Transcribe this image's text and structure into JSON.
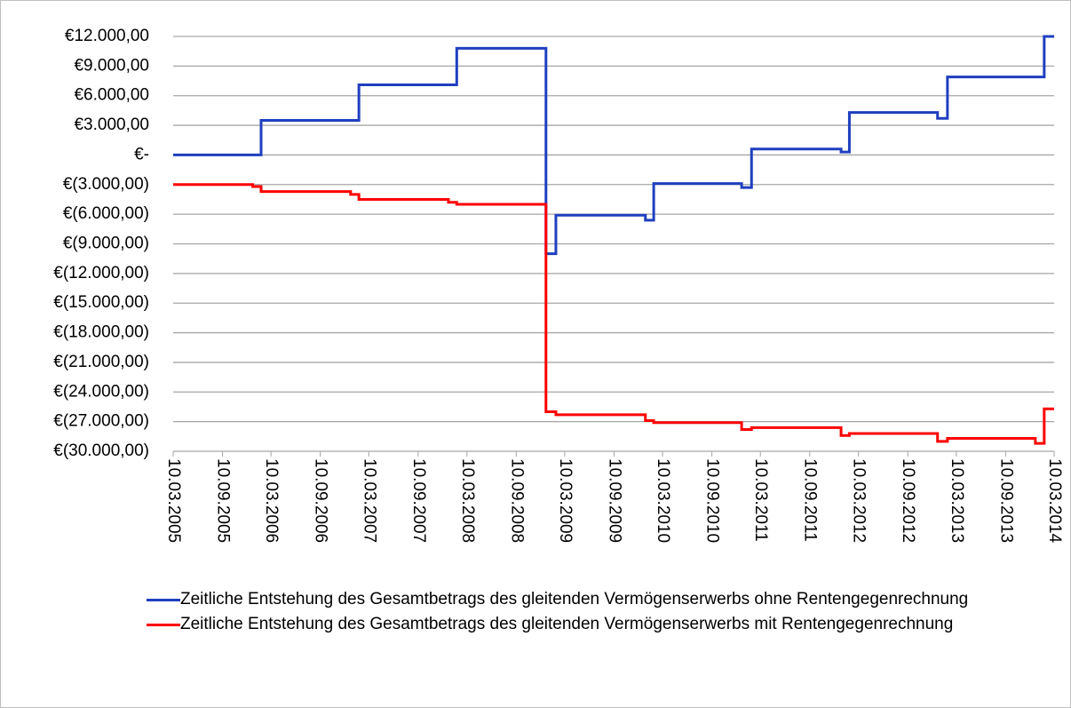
{
  "chart_data": {
    "type": "line",
    "step": "post",
    "xlim": [
      "10.03.2005",
      "10.03.2014"
    ],
    "xticks": [
      "10.03.2005",
      "10.09.2005",
      "10.03.2006",
      "10.09.2006",
      "10.03.2007",
      "10.09.2007",
      "10.03.2008",
      "10.09.2008",
      "10.03.2009",
      "10.09.2009",
      "10.03.2010",
      "10.09.2010",
      "10.03.2011",
      "10.09.2011",
      "10.03.2012",
      "10.09.2012",
      "10.03.2013",
      "10.09.2013",
      "10.03.2014"
    ],
    "ylim": [
      -30000,
      12000
    ],
    "yticks": [
      {
        "value": 12000,
        "label": "€12.000,00"
      },
      {
        "value": 9000,
        "label": "€9.000,00"
      },
      {
        "value": 6000,
        "label": "€6.000,00"
      },
      {
        "value": 3000,
        "label": "€3.000,00"
      },
      {
        "value": 0,
        "label": "€-"
      },
      {
        "value": -3000,
        "label": "€(3.000,00)"
      },
      {
        "value": -6000,
        "label": "€(6.000,00)"
      },
      {
        "value": -9000,
        "label": "€(9.000,00)"
      },
      {
        "value": -12000,
        "label": "€(12.000,00)"
      },
      {
        "value": -15000,
        "label": "€(15.000,00)"
      },
      {
        "value": -18000,
        "label": "€(18.000,00)"
      },
      {
        "value": -21000,
        "label": "€(21.000,00)"
      },
      {
        "value": -24000,
        "label": "€(24.000,00)"
      },
      {
        "value": -27000,
        "label": "€(27.000,00)"
      },
      {
        "value": -30000,
        "label": "€(30.000,00)"
      }
    ],
    "grid": true,
    "legend": "bottom",
    "series": [
      {
        "name": "Zeitliche Entstehung des Gesamtbetrags des gleitenden Vermögenserwerbs ohne Rentengegenrechnung",
        "color": "#1f3fbf",
        "x": [
          "10.03.2005",
          "01.02.2006",
          "01.02.2007",
          "01.02.2008",
          "30.12.2008",
          "05.02.2009",
          "05.01.2010",
          "05.02.2010",
          "30.12.2010",
          "05.02.2011",
          "05.01.2012",
          "05.02.2012",
          "30.12.2012",
          "05.02.2013",
          "01.02.2014",
          "10.03.2014"
        ],
        "values": [
          0,
          3500,
          7100,
          10800,
          -10000,
          -6100,
          -6600,
          -2900,
          -3300,
          600,
          300,
          4300,
          3700,
          7900,
          12000,
          12000
        ]
      },
      {
        "name": "Zeitliche Entstehung des Gesamtbetrags des gleitenden Vermögenserwerbs mit Rentengegenrechnung",
        "color": "#ff0000",
        "x": [
          "10.03.2005",
          "01.01.2006",
          "01.02.2006",
          "01.01.2007",
          "01.02.2007",
          "01.01.2008",
          "01.02.2008",
          "30.12.2008",
          "05.02.2009",
          "05.01.2010",
          "05.02.2010",
          "30.12.2010",
          "05.02.2011",
          "05.01.2012",
          "05.02.2012",
          "30.12.2012",
          "05.02.2013",
          "30.12.2013",
          "01.02.2014",
          "10.03.2014"
        ],
        "values": [
          -3000,
          -3200,
          -3700,
          -4000,
          -4500,
          -4800,
          -5000,
          -26000,
          -26300,
          -26900,
          -27100,
          -27800,
          -27600,
          -28400,
          -28200,
          -29000,
          -28700,
          -29200,
          -25700,
          -25700
        ]
      }
    ]
  }
}
